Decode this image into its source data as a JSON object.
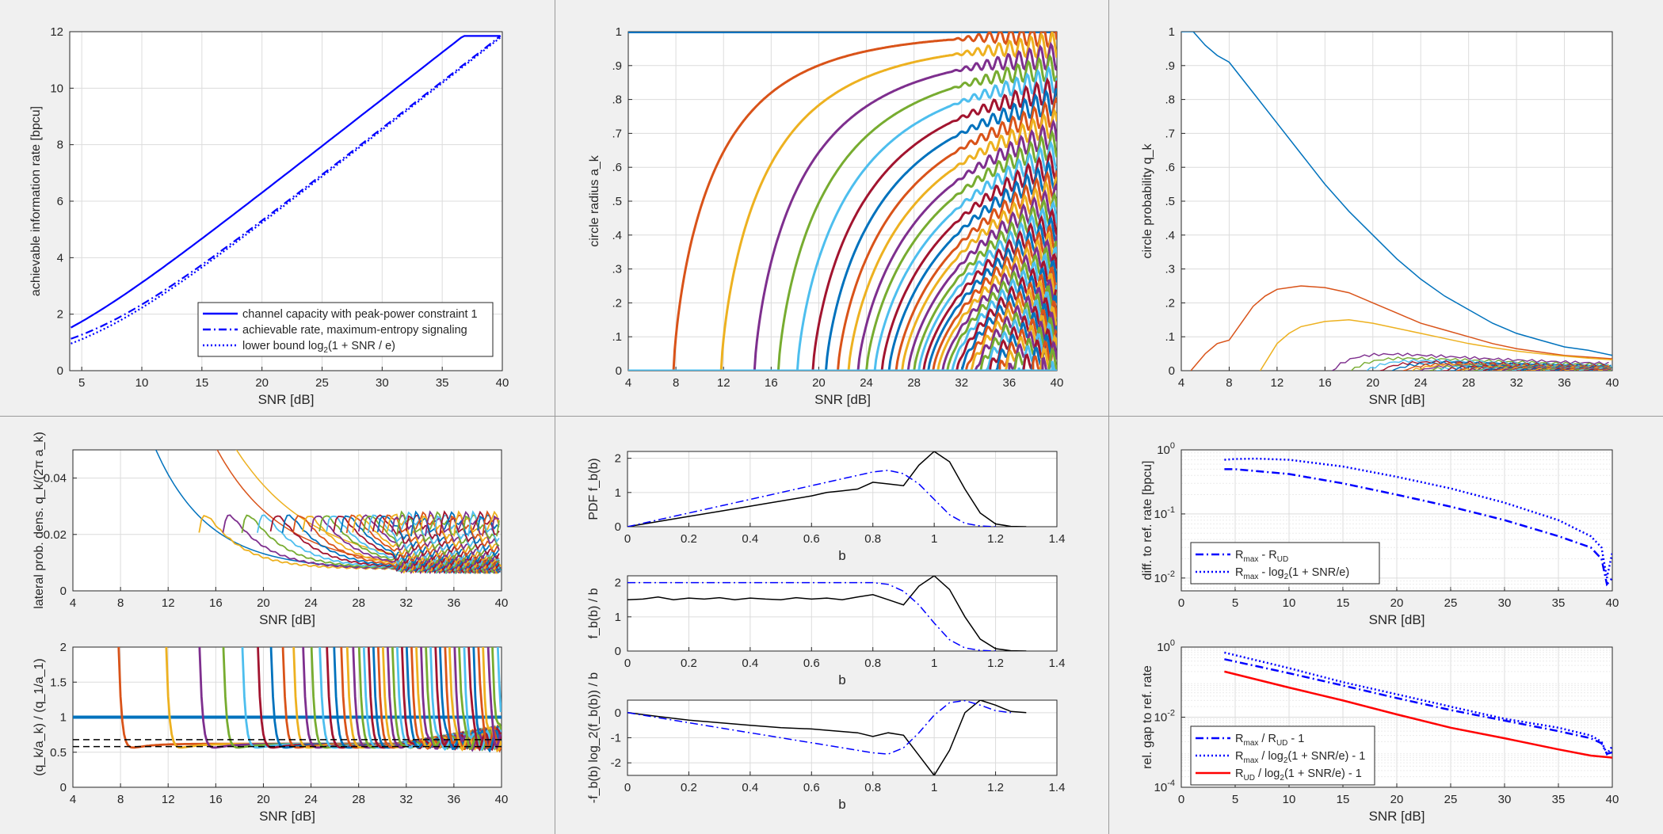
{
  "colors": {
    "matlab": [
      "#0072BD",
      "#D95319",
      "#EDB120",
      "#7E2F8E",
      "#77AC30",
      "#4DBEEE",
      "#A2142F"
    ],
    "blue": "#0000FF",
    "red": "#FF0000",
    "black": "#000000"
  },
  "chart_data": [
    {
      "id": "rates",
      "type": "line",
      "xlabel": "SNR [dB]",
      "ylabel": "achievable information rate [bpcu]",
      "xlim": [
        4,
        40
      ],
      "ylim": [
        0,
        12
      ],
      "xticks": [
        "5",
        "10",
        "15",
        "20",
        "25",
        "30",
        "35",
        "40"
      ],
      "yticks": [
        "0",
        "2",
        "4",
        "6",
        "8",
        "10",
        "12"
      ],
      "grid": true,
      "legend_position": "bottom-right",
      "series": [
        {
          "name": "channel capacity with peak-power constraint 1",
          "style": "solid",
          "x": [
            4.1,
            5,
            7.5,
            10,
            12.5,
            15,
            17.5,
            20,
            22.5,
            25,
            27.5,
            30,
            32.5,
            35,
            37.5,
            40
          ],
          "y": [
            1.7,
            1.92,
            2.58,
            3.3,
            4.05,
            4.85,
            5.68,
            6.54,
            7.41,
            8.29,
            9.18,
            10.07,
            10.96,
            11.86,
            12.75,
            11.85
          ]
        },
        {
          "name": "achievable rate, maximum-entropy signaling",
          "style": "dashdot",
          "x": [
            4.1,
            5,
            7.5,
            10,
            12.5,
            15,
            17.5,
            20,
            22.5,
            25,
            27.5,
            30,
            32.5,
            35,
            37.5,
            40
          ],
          "y": [
            1.2,
            1.4,
            2.0,
            2.68,
            3.42,
            4.22,
            5.05,
            5.92,
            6.8,
            7.69,
            8.59,
            9.5,
            10.4,
            11.3,
            12.2,
            11.85
          ]
        },
        {
          "name": "lower bound log2(1 + SNR / e)",
          "style": "dotted",
          "x": [
            4.1,
            5,
            7.5,
            10,
            12.5,
            15,
            17.5,
            20,
            22.5,
            25,
            27.5,
            30,
            32.5,
            35,
            37.5,
            40
          ],
          "y": [
            1.0,
            1.17,
            1.73,
            2.38,
            3.09,
            3.86,
            4.67,
            5.52,
            6.39,
            7.27,
            8.16,
            9.06,
            9.96,
            10.86,
            11.77,
            11.85
          ]
        }
      ]
    },
    {
      "id": "radii",
      "type": "line",
      "xlabel": "SNR [dB]",
      "ylabel": "circle radius a_k",
      "xlim": [
        4,
        40
      ],
      "ylim": [
        0,
        1
      ],
      "xticks": [
        "4",
        "8",
        "12",
        "16",
        "20",
        "24",
        "28",
        "32",
        "36",
        "40"
      ],
      "yticks": [
        "0",
        ".1",
        ".2",
        ".3",
        ".4",
        ".5",
        ".6",
        ".7",
        ".8",
        ".9",
        "1"
      ],
      "grid": true,
      "series_summary": "circle k appears at its onset SNR and grows toward 1",
      "onsets_db": [
        7.8,
        11.8,
        14.6,
        16.6,
        18.2,
        19.5,
        20.6,
        21.6,
        22.5,
        23.3,
        24.0,
        24.7,
        25.3,
        25.9,
        26.5,
        27.0,
        27.5,
        28.0,
        28.4,
        28.8,
        29.2,
        29.6,
        30.0,
        30.4,
        30.8,
        31.2,
        31.6,
        32.0,
        32.4,
        32.8,
        33.2,
        33.6,
        34.0,
        34.4,
        34.8,
        35.2,
        35.6,
        36.0,
        36.4,
        36.8,
        37.2,
        37.6,
        38.0,
        38.4,
        38.8,
        39.2,
        39.6
      ]
    },
    {
      "id": "probs",
      "type": "line",
      "xlabel": "SNR [dB]",
      "ylabel": "circle probability q_k",
      "xlim": [
        4,
        40
      ],
      "ylim": [
        0,
        1
      ],
      "xticks": [
        "4",
        "8",
        "12",
        "16",
        "20",
        "24",
        "28",
        "32",
        "36",
        "40"
      ],
      "yticks": [
        "0",
        ".1",
        ".2",
        ".3",
        ".4",
        ".5",
        ".6",
        ".7",
        ".8",
        ".9",
        "1"
      ],
      "grid": true,
      "series": [
        {
          "name": "q1",
          "x": [
            4,
            5,
            6,
            7,
            8,
            10,
            12,
            14,
            16,
            18,
            20,
            22,
            24,
            26,
            28,
            30,
            32,
            34,
            36,
            38,
            40
          ],
          "y": [
            1,
            1,
            0.96,
            0.93,
            0.91,
            0.82,
            0.73,
            0.64,
            0.55,
            0.47,
            0.4,
            0.33,
            0.27,
            0.22,
            0.18,
            0.14,
            0.11,
            0.09,
            0.07,
            0.06,
            0.045
          ]
        },
        {
          "name": "q2",
          "x": [
            4.8,
            6,
            7,
            8,
            9,
            10,
            11,
            12,
            13,
            14,
            16,
            18,
            20,
            22,
            24,
            26,
            28,
            30,
            32,
            34,
            36,
            38,
            40
          ],
          "y": [
            0,
            0.05,
            0.08,
            0.09,
            0.14,
            0.19,
            0.22,
            0.24,
            0.245,
            0.25,
            0.245,
            0.23,
            0.2,
            0.17,
            0.14,
            0.12,
            0.1,
            0.08,
            0.065,
            0.055,
            0.045,
            0.04,
            0.035
          ]
        },
        {
          "name": "q3",
          "x": [
            10.6,
            12,
            13,
            14,
            16,
            18,
            20,
            22,
            24,
            26,
            28,
            30,
            32,
            34,
            36,
            38,
            40
          ],
          "y": [
            0,
            0.08,
            0.11,
            0.13,
            0.145,
            0.15,
            0.14,
            0.125,
            0.11,
            0.095,
            0.08,
            0.068,
            0.058,
            0.05,
            0.043,
            0.037,
            0.032
          ]
        }
      ]
    },
    {
      "id": "lateral",
      "type": "line",
      "xlabel": "SNR [dB]",
      "ylabel": "lateral prob. dens. q_k/(2π a_k)",
      "xlim": [
        4,
        40
      ],
      "ylim": [
        0,
        0.05
      ],
      "xticks": [
        "4",
        "8",
        "12",
        "16",
        "20",
        "24",
        "28",
        "32",
        "36",
        "40"
      ],
      "yticks": [
        "0",
        "0.02",
        "0.04"
      ],
      "grid": true
    },
    {
      "id": "ratio",
      "type": "line",
      "xlabel": "SNR [dB]",
      "ylabel": "(q_k/a_k) / (q_1/a_1)",
      "xlim": [
        4,
        40
      ],
      "ylim": [
        0,
        2
      ],
      "xticks": [
        "4",
        "8",
        "12",
        "16",
        "20",
        "24",
        "28",
        "32",
        "36",
        "40"
      ],
      "yticks": [
        "0",
        "0.5",
        "1",
        "1.5",
        "2"
      ],
      "grid": true,
      "reference_lines": [
        0.58,
        0.68
      ]
    },
    {
      "id": "pdf",
      "type": "line",
      "xlabel": "b",
      "ylabel": "PDF f_b(b)",
      "xlim": [
        0,
        1.4
      ],
      "ylim": [
        0,
        2.2
      ],
      "xticks": [
        "0",
        "0.2",
        "0.4",
        "0.6",
        "0.8",
        "1",
        "1.2",
        "1.4"
      ],
      "yticks": [
        "0",
        "1",
        "2"
      ],
      "grid": true,
      "series": [
        {
          "name": "black",
          "x": [
            0,
            0.1,
            0.2,
            0.3,
            0.4,
            0.5,
            0.6,
            0.65,
            0.7,
            0.75,
            0.8,
            0.85,
            0.9,
            0.95,
            1.0,
            1.05,
            1.1,
            1.15,
            1.2,
            1.25,
            1.3
          ],
          "y": [
            0,
            0.15,
            0.3,
            0.45,
            0.6,
            0.75,
            0.9,
            1.0,
            1.05,
            1.1,
            1.3,
            1.25,
            1.2,
            1.8,
            2.2,
            1.9,
            1.1,
            0.4,
            0.08,
            0.01,
            0
          ]
        },
        {
          "name": "blue",
          "x": [
            0,
            0.2,
            0.4,
            0.6,
            0.8,
            0.85,
            0.9,
            0.95,
            1.0,
            1.05,
            1.1,
            1.15,
            1.2
          ],
          "y": [
            0,
            0.4,
            0.8,
            1.2,
            1.6,
            1.65,
            1.55,
            1.25,
            0.8,
            0.35,
            0.1,
            0.02,
            0
          ]
        }
      ]
    },
    {
      "id": "fb_over_b",
      "type": "line",
      "xlabel": "b",
      "ylabel": "f_b(b) / b",
      "xlim": [
        0,
        1.4
      ],
      "ylim": [
        0,
        2.2
      ],
      "xticks": [
        "0",
        "0.2",
        "0.4",
        "0.6",
        "0.8",
        "1",
        "1.2",
        "1.4"
      ],
      "yticks": [
        "0",
        "1",
        "2"
      ],
      "grid": true,
      "series": [
        {
          "name": "black",
          "x": [
            0,
            0.05,
            0.1,
            0.15,
            0.2,
            0.25,
            0.3,
            0.35,
            0.4,
            0.45,
            0.5,
            0.55,
            0.6,
            0.65,
            0.7,
            0.75,
            0.8,
            0.85,
            0.9,
            0.95,
            1.0,
            1.05,
            1.1,
            1.15,
            1.2,
            1.25,
            1.3
          ],
          "y": [
            1.5,
            1.52,
            1.58,
            1.5,
            1.55,
            1.52,
            1.56,
            1.5,
            1.55,
            1.52,
            1.5,
            1.56,
            1.52,
            1.55,
            1.5,
            1.58,
            1.65,
            1.5,
            1.35,
            1.9,
            2.2,
            1.8,
            1.0,
            0.35,
            0.07,
            0.01,
            0
          ]
        },
        {
          "name": "blue",
          "x": [
            0,
            0.2,
            0.4,
            0.6,
            0.8,
            0.85,
            0.9,
            0.95,
            1.0,
            1.05,
            1.1,
            1.15,
            1.2
          ],
          "y": [
            2.0,
            2.0,
            2.0,
            2.0,
            2.0,
            1.95,
            1.75,
            1.35,
            0.82,
            0.33,
            0.09,
            0.02,
            0
          ]
        }
      ]
    },
    {
      "id": "entropy_density",
      "type": "line",
      "xlabel": "b",
      "ylabel": "-f_b(b) log_2(f_b(b)) / b",
      "xlim": [
        0,
        1.4
      ],
      "ylim": [
        -2.5,
        0.5
      ],
      "xticks": [
        "0",
        "0.2",
        "0.4",
        "0.6",
        "0.8",
        "1",
        "1.2",
        "1.4"
      ],
      "yticks": [
        "-2",
        "-1",
        "0"
      ],
      "grid": true,
      "series": [
        {
          "name": "black",
          "x": [
            0,
            0.1,
            0.2,
            0.3,
            0.4,
            0.5,
            0.6,
            0.65,
            0.7,
            0.75,
            0.8,
            0.85,
            0.9,
            0.95,
            1.0,
            1.05,
            1.1,
            1.15,
            1.2,
            1.25,
            1.3
          ],
          "y": [
            0,
            -0.15,
            -0.3,
            -0.4,
            -0.5,
            -0.6,
            -0.65,
            -0.7,
            -0.75,
            -0.8,
            -0.95,
            -0.8,
            -0.9,
            -1.7,
            -2.5,
            -1.5,
            0.0,
            0.5,
            0.3,
            0.05,
            0
          ]
        },
        {
          "name": "blue",
          "x": [
            0,
            0.2,
            0.4,
            0.6,
            0.8,
            0.85,
            0.9,
            0.95,
            1.0,
            1.05,
            1.1,
            1.15,
            1.2,
            1.25
          ],
          "y": [
            0,
            -0.4,
            -0.8,
            -1.2,
            -1.6,
            -1.65,
            -1.4,
            -0.8,
            -0.1,
            0.4,
            0.48,
            0.3,
            0.08,
            0
          ]
        }
      ]
    },
    {
      "id": "diff",
      "type": "line",
      "xlabel": "SNR [dB]",
      "ylabel": "diff. to ref. rate [bpcu]",
      "xlim": [
        0,
        40
      ],
      "ylim_log10": [
        -2.2,
        0
      ],
      "yscale": "log",
      "xticks": [
        "0",
        "5",
        "10",
        "15",
        "20",
        "25",
        "30",
        "35",
        "40"
      ],
      "yticks": [
        "10^-2",
        "10^-1",
        "10^0"
      ],
      "grid": true,
      "legend_position": "bottom-left",
      "series": [
        {
          "name": "R_max - R_UD",
          "style": "dashdot",
          "x": [
            4,
            5,
            10,
            15,
            20,
            25,
            30,
            35,
            38,
            39,
            39.5,
            40
          ],
          "y": [
            0.5,
            0.5,
            0.42,
            0.3,
            0.2,
            0.13,
            0.08,
            0.045,
            0.03,
            0.02,
            0.008,
            0.01
          ]
        },
        {
          "name": "R_max - log_2(1 + SNR/e)",
          "style": "dotted",
          "x": [
            4,
            5,
            7,
            10,
            15,
            20,
            25,
            30,
            35,
            38,
            39,
            39.5,
            40
          ],
          "y": [
            0.7,
            0.72,
            0.73,
            0.7,
            0.55,
            0.38,
            0.25,
            0.15,
            0.08,
            0.045,
            0.03,
            0.01,
            0.025
          ]
        }
      ]
    },
    {
      "id": "relgap",
      "type": "line",
      "xlabel": "SNR [dB]",
      "ylabel": "rel. gap to ref. rate",
      "xlim": [
        0,
        40
      ],
      "ylim_log10": [
        -4,
        0
      ],
      "yscale": "log",
      "xticks": [
        "0",
        "5",
        "10",
        "15",
        "20",
        "25",
        "30",
        "35",
        "40"
      ],
      "yticks": [
        "10^-4",
        "10^-2",
        "10^0"
      ],
      "grid": true,
      "legend_position": "bottom-left",
      "series": [
        {
          "name": "R_max / R_UD - 1",
          "style": "dashdot",
          "x": [
            4,
            10,
            15,
            20,
            25,
            30,
            35,
            38,
            39,
            39.5,
            40
          ],
          "y": [
            0.45,
            0.18,
            0.08,
            0.035,
            0.016,
            0.008,
            0.004,
            0.0025,
            0.0018,
            0.0009,
            0.001
          ]
        },
        {
          "name": "R_max / log_2(1 + SNR/e) - 1",
          "style": "dotted",
          "x": [
            4,
            10,
            15,
            20,
            25,
            30,
            35,
            38,
            39,
            39.5,
            40
          ],
          "y": [
            0.7,
            0.25,
            0.1,
            0.045,
            0.02,
            0.009,
            0.005,
            0.003,
            0.002,
            0.0009,
            0.0015
          ]
        },
        {
          "name": "R_UD / log_2(1 + SNR/e) - 1",
          "style": "solid",
          "x": [
            4,
            10,
            15,
            20,
            25,
            30,
            35,
            38,
            40
          ],
          "y": [
            0.2,
            0.07,
            0.03,
            0.012,
            0.005,
            0.0025,
            0.0012,
            0.0008,
            0.0007
          ]
        }
      ]
    }
  ]
}
